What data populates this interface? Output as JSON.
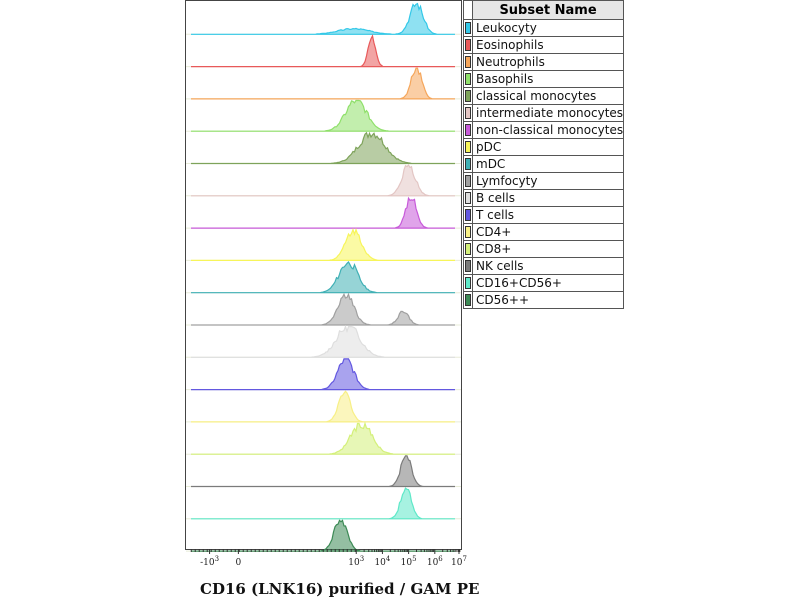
{
  "chart_data": {
    "type": "area",
    "subtype": "stacked histogram overlays (ridgeline)",
    "xlabel": "CD16 (LNK16) purified / GAM PE",
    "x_scale": "biexponential (log above ~10^2)",
    "xlim_log10": [
      -3.5,
      7
    ],
    "x_ticks": [
      {
        "label": "-10",
        "sup": "3"
      },
      {
        "label": "0",
        "sup": ""
      },
      {
        "label": "10",
        "sup": "3"
      },
      {
        "label": "10",
        "sup": "4"
      },
      {
        "label": "10",
        "sup": "5"
      },
      {
        "label": "10",
        "sup": "6"
      },
      {
        "label": "10",
        "sup": "7"
      }
    ],
    "legend_header": "Subset Name",
    "series": [
      {
        "name": "Leukocyty",
        "color": "#33c8e8",
        "peaks": [
          {
            "center_log10": 5.3,
            "width": 0.25,
            "height": 1.0
          },
          {
            "center_log10": 2.9,
            "width": 0.6,
            "height": 0.18
          }
        ]
      },
      {
        "name": "Eosinophils",
        "color": "#e8595a",
        "peaks": [
          {
            "center_log10": 3.6,
            "width": 0.14,
            "height": 1.0
          }
        ]
      },
      {
        "name": "Neutrophils",
        "color": "#f5a65b",
        "peaks": [
          {
            "center_log10": 5.3,
            "width": 0.2,
            "height": 1.0
          }
        ]
      },
      {
        "name": "Basophils",
        "color": "#8fe06a",
        "peaks": [
          {
            "center_log10": 3.0,
            "width": 0.4,
            "height": 1.0
          }
        ]
      },
      {
        "name": "classical monocytes",
        "color": "#7ea35a",
        "peaks": [
          {
            "center_log10": 3.6,
            "width": 0.5,
            "height": 1.0
          }
        ]
      },
      {
        "name": "intermediate monocytes",
        "color": "#e3c6c4",
        "peaks": [
          {
            "center_log10": 5.0,
            "width": 0.25,
            "height": 1.0
          }
        ]
      },
      {
        "name": "non-classical monocytes",
        "color": "#c75ad9",
        "peaks": [
          {
            "center_log10": 5.1,
            "width": 0.2,
            "height": 1.0
          }
        ]
      },
      {
        "name": "pDC",
        "color": "#f7f55a",
        "peaks": [
          {
            "center_log10": 2.9,
            "width": 0.3,
            "height": 1.0
          }
        ]
      },
      {
        "name": "mDC",
        "color": "#3fb0b5",
        "peaks": [
          {
            "center_log10": 2.7,
            "width": 0.35,
            "height": 1.0
          }
        ]
      },
      {
        "name": "Lymfocyty",
        "color": "#a0a0a0",
        "peaks": [
          {
            "center_log10": 2.6,
            "width": 0.3,
            "height": 1.0
          },
          {
            "center_log10": 4.8,
            "width": 0.2,
            "height": 0.45
          }
        ]
      },
      {
        "name": "B cells",
        "color": "#dedede",
        "peaks": [
          {
            "center_log10": 2.7,
            "width": 0.45,
            "height": 1.0
          }
        ]
      },
      {
        "name": "T cells",
        "color": "#6358e0",
        "peaks": [
          {
            "center_log10": 2.6,
            "width": 0.3,
            "height": 1.0
          }
        ]
      },
      {
        "name": "CD4+",
        "color": "#f7ef86",
        "peaks": [
          {
            "center_log10": 2.55,
            "width": 0.22,
            "height": 1.0
          }
        ]
      },
      {
        "name": "CD8+",
        "color": "#d4f07a",
        "peaks": [
          {
            "center_log10": 3.2,
            "width": 0.4,
            "height": 1.0
          }
        ]
      },
      {
        "name": "NK cells",
        "color": "#7b7b7b",
        "peaks": [
          {
            "center_log10": 4.9,
            "width": 0.2,
            "height": 1.0
          }
        ]
      },
      {
        "name": "CD16+CD56+",
        "color": "#5fe8c8",
        "peaks": [
          {
            "center_log10": 4.9,
            "width": 0.2,
            "height": 1.0
          }
        ]
      },
      {
        "name": "CD56++",
        "color": "#3c8a55",
        "peaks": [
          {
            "center_log10": 2.4,
            "width": 0.25,
            "height": 1.0
          }
        ]
      }
    ]
  }
}
